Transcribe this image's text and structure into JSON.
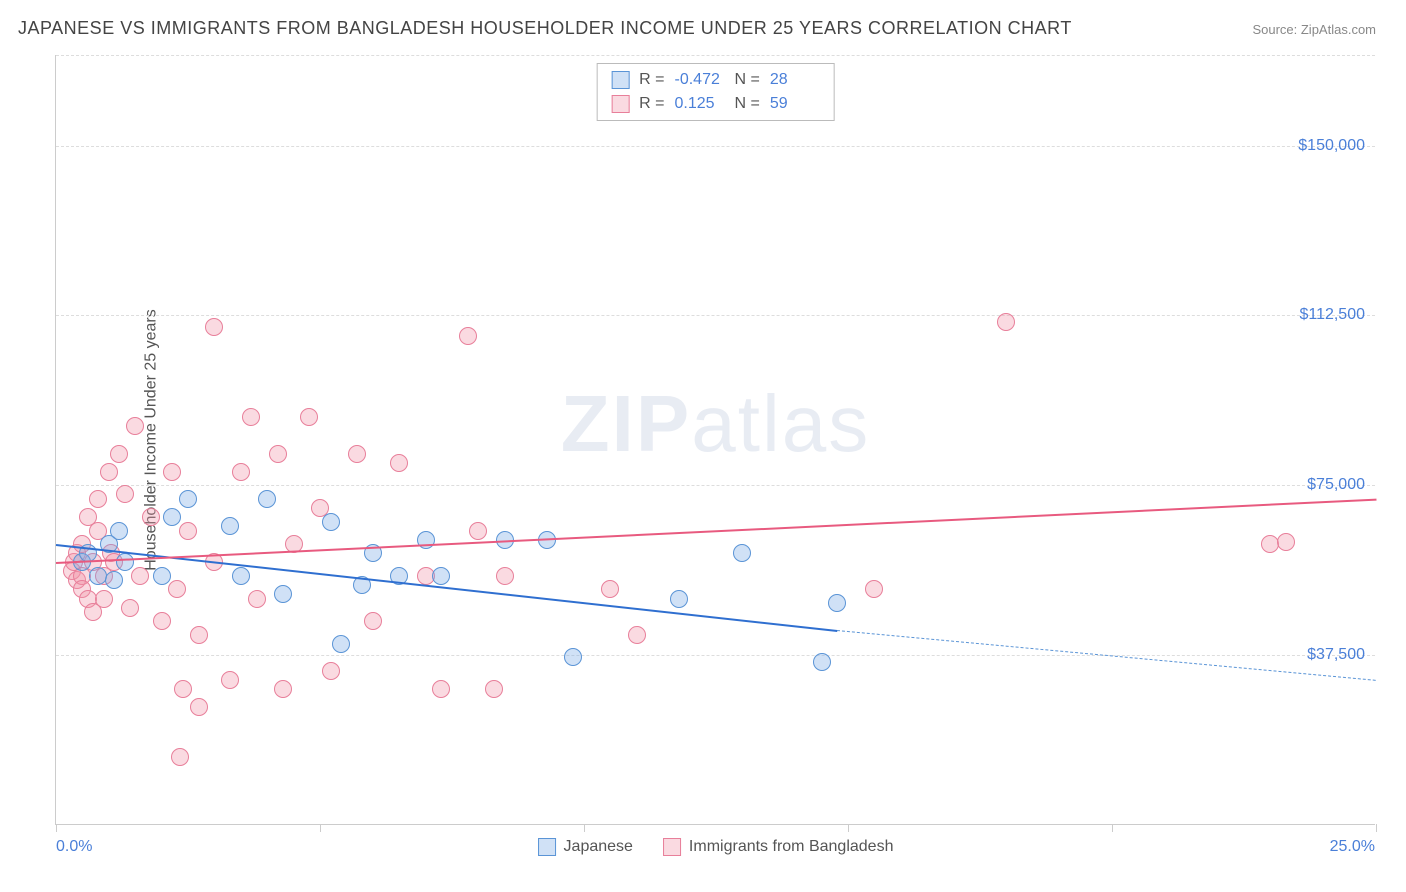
{
  "title": "JAPANESE VS IMMIGRANTS FROM BANGLADESH HOUSEHOLDER INCOME UNDER 25 YEARS CORRELATION CHART",
  "source": "Source: ZipAtlas.com",
  "watermark_a": "ZIP",
  "watermark_b": "atlas",
  "y_axis_title": "Householder Income Under 25 years",
  "x_min_label": "0.0%",
  "x_max_label": "25.0%",
  "chart": {
    "type": "scatter",
    "xlim": [
      0,
      25
    ],
    "ylim": [
      0,
      170000
    ],
    "y_ticks": [
      {
        "v": 37500,
        "label": "$37,500"
      },
      {
        "v": 75000,
        "label": "$75,000"
      },
      {
        "v": 112500,
        "label": "$112,500"
      },
      {
        "v": 150000,
        "label": "$150,000"
      }
    ],
    "x_ticks_pct": [
      0,
      5,
      10,
      15,
      20,
      25
    ],
    "grid_color": "#dddddd",
    "background_color": "#ffffff",
    "marker_radius": 9,
    "marker_stroke_width": 1.5,
    "series": [
      {
        "key": "japanese",
        "label": "Japanese",
        "fill": "rgba(120,170,230,0.35)",
        "stroke": "#5a94d6",
        "R": "-0.472",
        "N": "28",
        "trend": {
          "x1": 0,
          "y1": 62000,
          "x2": 14.8,
          "y2": 43000,
          "color": "#2f6fd0",
          "width": 2,
          "dash": false
        },
        "trend_ext": {
          "x1": 14.8,
          "y1": 43000,
          "x2": 25,
          "y2": 32000,
          "color": "#5a94d6",
          "width": 1.5,
          "dash": true
        },
        "points": [
          [
            0.5,
            58000
          ],
          [
            0.6,
            60000
          ],
          [
            0.8,
            55000
          ],
          [
            1.0,
            62000
          ],
          [
            1.1,
            54000
          ],
          [
            1.2,
            65000
          ],
          [
            1.3,
            58000
          ],
          [
            2.0,
            55000
          ],
          [
            2.2,
            68000
          ],
          [
            2.5,
            72000
          ],
          [
            3.3,
            66000
          ],
          [
            3.5,
            55000
          ],
          [
            4.0,
            72000
          ],
          [
            4.3,
            51000
          ],
          [
            5.2,
            67000
          ],
          [
            5.4,
            40000
          ],
          [
            5.8,
            53000
          ],
          [
            6.0,
            60000
          ],
          [
            6.5,
            55000
          ],
          [
            7.0,
            63000
          ],
          [
            7.3,
            55000
          ],
          [
            8.5,
            63000
          ],
          [
            9.3,
            63000
          ],
          [
            9.8,
            37000
          ],
          [
            11.8,
            50000
          ],
          [
            13.0,
            60000
          ],
          [
            14.5,
            36000
          ],
          [
            14.8,
            49000
          ]
        ]
      },
      {
        "key": "bangladesh",
        "label": "Immigrants from Bangladesh",
        "fill": "rgba(240,150,170,0.35)",
        "stroke": "#e87f9a",
        "R": "0.125",
        "N": "59",
        "trend": {
          "x1": 0,
          "y1": 58000,
          "x2": 25,
          "y2": 72000,
          "color": "#e85a7f",
          "width": 2,
          "dash": false
        },
        "points": [
          [
            0.3,
            56000
          ],
          [
            0.35,
            58000
          ],
          [
            0.4,
            60000
          ],
          [
            0.4,
            54000
          ],
          [
            0.5,
            62000
          ],
          [
            0.5,
            55000
          ],
          [
            0.5,
            52000
          ],
          [
            0.6,
            68000
          ],
          [
            0.6,
            50000
          ],
          [
            0.7,
            58000
          ],
          [
            0.7,
            47000
          ],
          [
            0.8,
            72000
          ],
          [
            0.8,
            65000
          ],
          [
            0.9,
            55000
          ],
          [
            0.9,
            50000
          ],
          [
            1.0,
            78000
          ],
          [
            1.05,
            60000
          ],
          [
            1.1,
            58000
          ],
          [
            1.2,
            82000
          ],
          [
            1.3,
            73000
          ],
          [
            1.4,
            48000
          ],
          [
            1.5,
            88000
          ],
          [
            1.6,
            55000
          ],
          [
            1.8,
            68000
          ],
          [
            2.0,
            45000
          ],
          [
            2.2,
            78000
          ],
          [
            2.3,
            52000
          ],
          [
            2.35,
            15000
          ],
          [
            2.4,
            30000
          ],
          [
            2.5,
            65000
          ],
          [
            2.7,
            42000
          ],
          [
            2.7,
            26000
          ],
          [
            3.0,
            110000
          ],
          [
            3.0,
            58000
          ],
          [
            3.3,
            32000
          ],
          [
            3.5,
            78000
          ],
          [
            3.7,
            90000
          ],
          [
            3.8,
            50000
          ],
          [
            4.2,
            82000
          ],
          [
            4.3,
            30000
          ],
          [
            4.5,
            62000
          ],
          [
            4.8,
            90000
          ],
          [
            5.0,
            70000
          ],
          [
            5.2,
            34000
          ],
          [
            5.7,
            82000
          ],
          [
            6.0,
            45000
          ],
          [
            6.5,
            80000
          ],
          [
            7.0,
            55000
          ],
          [
            7.3,
            30000
          ],
          [
            7.8,
            108000
          ],
          [
            8.0,
            65000
          ],
          [
            8.3,
            30000
          ],
          [
            8.5,
            55000
          ],
          [
            10.5,
            52000
          ],
          [
            11.0,
            42000
          ],
          [
            15.5,
            52000
          ],
          [
            18.0,
            111000
          ],
          [
            23.0,
            62000
          ],
          [
            23.3,
            62500
          ]
        ]
      }
    ]
  },
  "colors": {
    "text_primary": "#444444",
    "text_secondary": "#888888",
    "accent_blue": "#4a7fd8"
  }
}
